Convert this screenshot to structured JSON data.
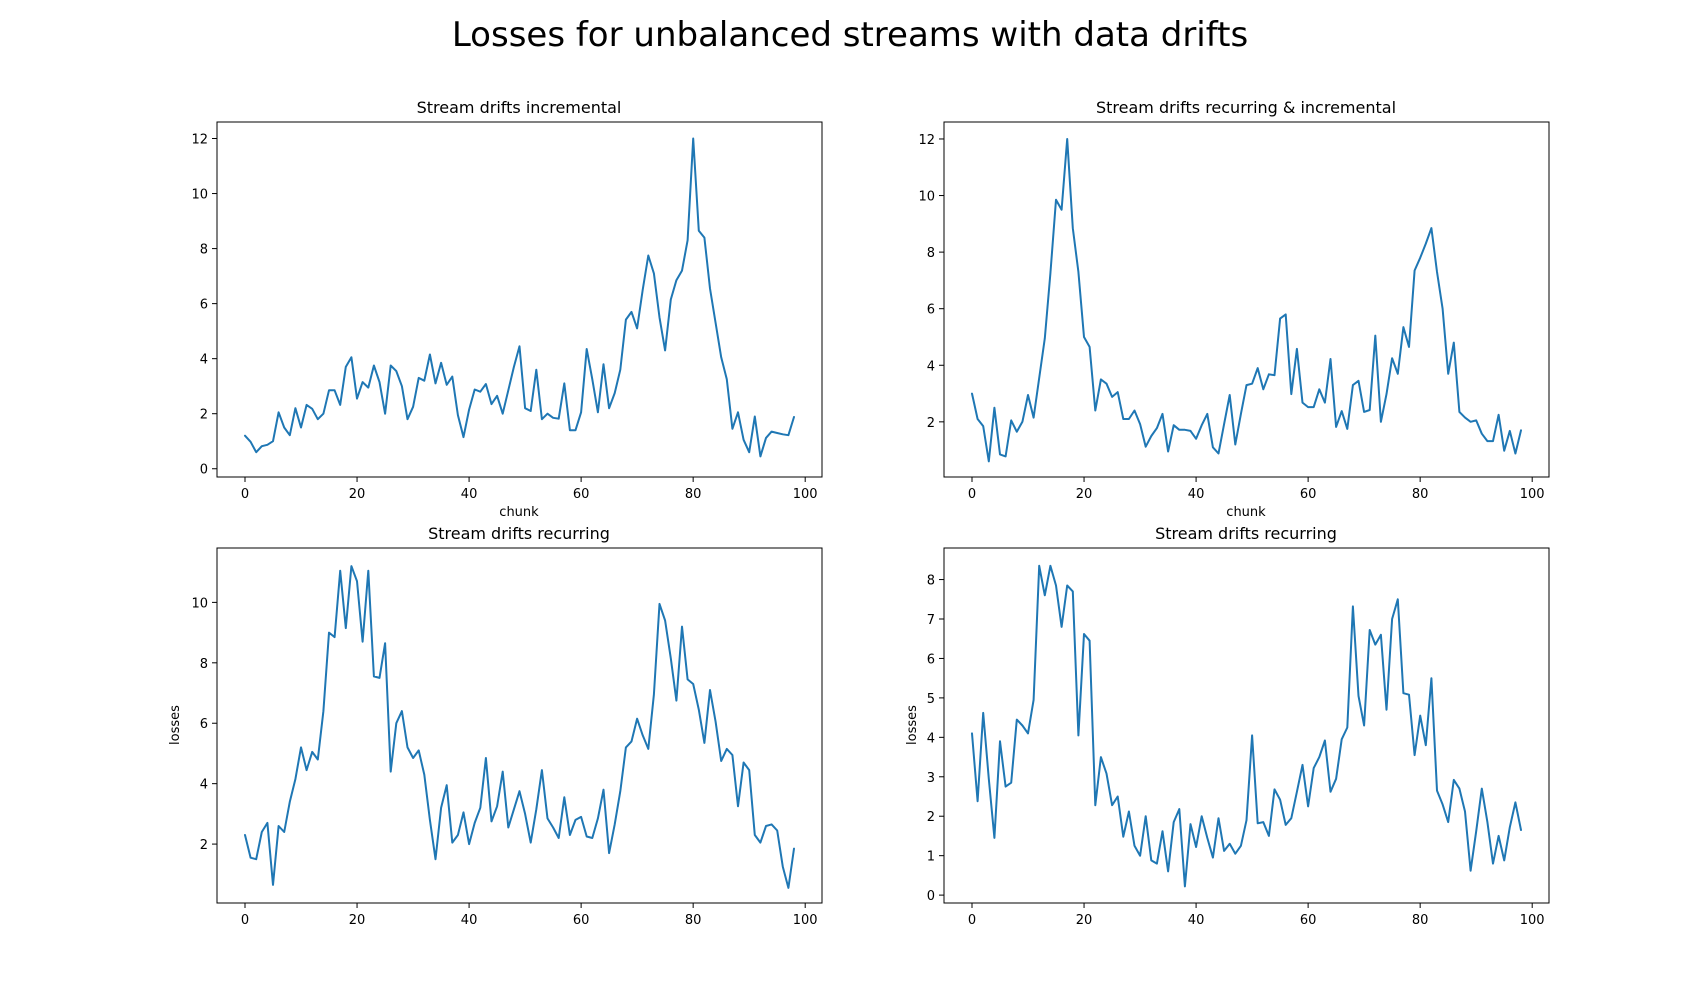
{
  "figure": {
    "title": "Losses for unbalanced streams with data drifts",
    "line_color": "#1f77b4"
  },
  "chart_data": [
    {
      "type": "line",
      "title": "Stream drifts incremental",
      "xlabel": "chunk",
      "ylabel": "",
      "xlim": [
        -5,
        103
      ],
      "ylim": [
        -0.3,
        12.6
      ],
      "xticks": [
        0,
        20,
        40,
        60,
        80,
        100
      ],
      "yticks": [
        0,
        2,
        4,
        6,
        8,
        10,
        12
      ],
      "series": [
        {
          "x": [
            0,
            1,
            2,
            3,
            4,
            5,
            6,
            7,
            8,
            9,
            10,
            11,
            12,
            13,
            14,
            15,
            16,
            17,
            18,
            19,
            20,
            21,
            22,
            23,
            24,
            25,
            26,
            27,
            28,
            29,
            30,
            31,
            32,
            33,
            34,
            35,
            36,
            37,
            38,
            39,
            40,
            41,
            42,
            43,
            44,
            45,
            46,
            47,
            48,
            49,
            50,
            51,
            52,
            53,
            54,
            55,
            56,
            57,
            58,
            59,
            60,
            61,
            62,
            63,
            64,
            65,
            66,
            67,
            68,
            69,
            70,
            71,
            72,
            73,
            74,
            75,
            76,
            77,
            78,
            79,
            80,
            81,
            82,
            83,
            84,
            85,
            86,
            87,
            88,
            89,
            90,
            91,
            92,
            93,
            94,
            95,
            96,
            97,
            98
          ],
          "values": [
            1.2,
            0.98,
            0.6,
            0.82,
            0.87,
            1.0,
            2.05,
            1.5,
            1.22,
            2.2,
            1.5,
            2.32,
            2.18,
            1.8,
            2.0,
            2.85,
            2.85,
            2.32,
            3.7,
            4.05,
            2.55,
            3.15,
            2.95,
            3.75,
            3.15,
            2.0,
            3.75,
            3.55,
            3.0,
            1.8,
            2.25,
            3.3,
            3.2,
            4.15,
            3.1,
            3.85,
            3.05,
            3.35,
            1.95,
            1.15,
            2.15,
            2.88,
            2.8,
            3.08,
            2.35,
            2.65,
            2.0,
            2.85,
            3.7,
            4.45,
            2.2,
            2.1,
            3.6,
            1.8,
            2.0,
            1.85,
            1.82,
            3.1,
            1.4,
            1.4,
            2.05,
            4.35,
            3.25,
            2.05,
            3.8,
            2.2,
            2.75,
            3.6,
            5.42,
            5.7,
            5.1,
            6.5,
            7.75,
            7.1,
            5.5,
            4.3,
            6.15,
            6.85,
            7.2,
            8.3,
            12.0,
            8.65,
            8.4,
            6.55,
            5.3,
            4.05,
            3.25,
            1.45,
            2.05,
            1.05,
            0.6,
            1.9,
            0.45,
            1.12,
            1.35,
            1.3,
            1.25,
            1.22,
            1.88
          ]
        }
      ]
    },
    {
      "type": "line",
      "title": "Stream drifts recurring & incremental",
      "xlabel": "chunk",
      "ylabel": "",
      "xlim": [
        -5,
        103
      ],
      "ylim": [
        0.05,
        12.6
      ],
      "xticks": [
        0,
        20,
        40,
        60,
        80,
        100
      ],
      "yticks": [
        2,
        4,
        6,
        8,
        10,
        12
      ],
      "series": [
        {
          "x": [
            0,
            1,
            2,
            3,
            4,
            5,
            6,
            7,
            8,
            9,
            10,
            11,
            12,
            13,
            14,
            15,
            16,
            17,
            18,
            19,
            20,
            21,
            22,
            23,
            24,
            25,
            26,
            27,
            28,
            29,
            30,
            31,
            32,
            33,
            34,
            35,
            36,
            37,
            38,
            39,
            40,
            41,
            42,
            43,
            44,
            45,
            46,
            47,
            48,
            49,
            50,
            51,
            52,
            53,
            54,
            55,
            56,
            57,
            58,
            59,
            60,
            61,
            62,
            63,
            64,
            65,
            66,
            67,
            68,
            69,
            70,
            71,
            72,
            73,
            74,
            75,
            76,
            77,
            78,
            79,
            80,
            81,
            82,
            83,
            84,
            85,
            86,
            87,
            88,
            89,
            90,
            91,
            92,
            93,
            94,
            95,
            96,
            97,
            98
          ],
          "values": [
            3.0,
            2.1,
            1.85,
            0.6,
            2.5,
            0.85,
            0.78,
            2.05,
            1.65,
            2.0,
            2.95,
            2.15,
            3.55,
            4.95,
            7.25,
            9.85,
            9.5,
            12.0,
            8.85,
            7.3,
            5.0,
            4.65,
            2.4,
            3.5,
            3.35,
            2.88,
            3.05,
            2.1,
            2.1,
            2.4,
            1.92,
            1.12,
            1.5,
            1.78,
            2.28,
            0.95,
            1.88,
            1.72,
            1.72,
            1.68,
            1.4,
            1.88,
            2.28,
            1.1,
            0.88,
            1.92,
            2.95,
            1.2,
            2.28,
            3.3,
            3.35,
            3.9,
            3.15,
            3.68,
            3.65,
            5.65,
            5.8,
            2.98,
            4.58,
            2.68,
            2.52,
            2.52,
            3.15,
            2.68,
            4.22,
            1.82,
            2.38,
            1.75,
            3.3,
            3.45,
            2.35,
            2.42,
            5.05,
            2.0,
            2.98,
            4.25,
            3.7,
            5.35,
            4.65,
            7.35,
            7.8,
            8.3,
            8.85,
            7.3,
            6.0,
            3.7,
            4.8,
            2.35,
            2.15,
            2.0,
            2.05,
            1.58,
            1.32,
            1.32,
            2.25,
            0.98,
            1.68,
            0.88,
            1.7
          ]
        }
      ]
    },
    {
      "type": "line",
      "title": "Stream drifts recurring",
      "xlabel": "",
      "ylabel": "losses",
      "xlim": [
        -5,
        103
      ],
      "ylim": [
        0.05,
        11.8
      ],
      "xticks": [
        0,
        20,
        40,
        60,
        80,
        100
      ],
      "yticks": [
        2,
        4,
        6,
        8,
        10
      ],
      "series": [
        {
          "x": [
            0,
            1,
            2,
            3,
            4,
            5,
            6,
            7,
            8,
            9,
            10,
            11,
            12,
            13,
            14,
            15,
            16,
            17,
            18,
            19,
            20,
            21,
            22,
            23,
            24,
            25,
            26,
            27,
            28,
            29,
            30,
            31,
            32,
            33,
            34,
            35,
            36,
            37,
            38,
            39,
            40,
            41,
            42,
            43,
            44,
            45,
            46,
            47,
            48,
            49,
            50,
            51,
            52,
            53,
            54,
            55,
            56,
            57,
            58,
            59,
            60,
            61,
            62,
            63,
            64,
            65,
            66,
            67,
            68,
            69,
            70,
            71,
            72,
            73,
            74,
            75,
            76,
            77,
            78,
            79,
            80,
            81,
            82,
            83,
            84,
            85,
            86,
            87,
            88,
            89,
            90,
            91,
            92,
            93,
            94,
            95,
            96,
            97,
            98
          ],
          "values": [
            2.3,
            1.55,
            1.5,
            2.4,
            2.7,
            0.65,
            2.6,
            2.4,
            3.4,
            4.15,
            5.2,
            4.45,
            5.05,
            4.8,
            6.4,
            9.0,
            8.85,
            11.05,
            9.15,
            11.2,
            10.7,
            8.7,
            11.05,
            7.55,
            7.5,
            8.65,
            4.4,
            6.0,
            6.4,
            5.2,
            4.85,
            5.1,
            4.3,
            2.8,
            1.5,
            3.2,
            3.95,
            2.05,
            2.3,
            3.05,
            2.0,
            2.7,
            3.2,
            4.85,
            2.75,
            3.25,
            4.4,
            2.55,
            3.15,
            3.75,
            3.0,
            2.05,
            3.15,
            4.45,
            2.85,
            2.55,
            2.2,
            3.55,
            2.3,
            2.8,
            2.9,
            2.25,
            2.2,
            2.85,
            3.8,
            1.7,
            2.65,
            3.75,
            5.2,
            5.4,
            6.15,
            5.6,
            5.15,
            6.95,
            9.95,
            9.4,
            8.15,
            6.75,
            9.2,
            7.45,
            7.3,
            6.45,
            5.35,
            7.1,
            6.05,
            4.75,
            5.15,
            4.95,
            3.25,
            4.7,
            4.45,
            2.3,
            2.05,
            2.6,
            2.65,
            2.45,
            1.25,
            0.55,
            1.85
          ]
        }
      ]
    },
    {
      "type": "line",
      "title": "Stream drifts recurring",
      "xlabel": "",
      "ylabel": "losses",
      "xlim": [
        -5,
        103
      ],
      "ylim": [
        -0.2,
        8.8
      ],
      "xticks": [
        0,
        20,
        40,
        60,
        80,
        100
      ],
      "yticks": [
        0,
        1,
        2,
        3,
        4,
        5,
        6,
        7,
        8
      ],
      "series": [
        {
          "x": [
            0,
            1,
            2,
            3,
            4,
            5,
            6,
            7,
            8,
            9,
            10,
            11,
            12,
            13,
            14,
            15,
            16,
            17,
            18,
            19,
            20,
            21,
            22,
            23,
            24,
            25,
            26,
            27,
            28,
            29,
            30,
            31,
            32,
            33,
            34,
            35,
            36,
            37,
            38,
            39,
            40,
            41,
            42,
            43,
            44,
            45,
            46,
            47,
            48,
            49,
            50,
            51,
            52,
            53,
            54,
            55,
            56,
            57,
            58,
            59,
            60,
            61,
            62,
            63,
            64,
            65,
            66,
            67,
            68,
            69,
            70,
            71,
            72,
            73,
            74,
            75,
            76,
            77,
            78,
            79,
            80,
            81,
            82,
            83,
            84,
            85,
            86,
            87,
            88,
            89,
            90,
            91,
            92,
            93,
            94,
            95,
            96,
            97,
            98
          ],
          "values": [
            4.1,
            2.38,
            4.62,
            2.95,
            1.45,
            3.9,
            2.75,
            2.85,
            4.45,
            4.3,
            4.1,
            4.95,
            8.35,
            7.6,
            8.35,
            7.85,
            6.8,
            7.85,
            7.7,
            4.05,
            6.62,
            6.45,
            2.28,
            3.5,
            3.08,
            2.28,
            2.5,
            1.48,
            2.12,
            1.25,
            1.0,
            2.0,
            0.88,
            0.8,
            1.62,
            0.6,
            1.85,
            2.18,
            0.22,
            1.8,
            1.22,
            2.0,
            1.45,
            0.95,
            1.95,
            1.12,
            1.3,
            1.05,
            1.25,
            1.9,
            4.05,
            1.82,
            1.85,
            1.5,
            2.68,
            2.42,
            1.78,
            1.95,
            2.62,
            3.3,
            2.25,
            3.22,
            3.5,
            3.92,
            2.62,
            2.95,
            3.95,
            4.25,
            7.32,
            5.05,
            4.3,
            6.72,
            6.35,
            6.6,
            4.7,
            7.0,
            7.5,
            5.12,
            5.08,
            3.55,
            4.55,
            3.8,
            5.5,
            2.65,
            2.3,
            1.85,
            2.92,
            2.7,
            2.12,
            0.62,
            1.62,
            2.7,
            1.85,
            0.8,
            1.5,
            0.88,
            1.72,
            2.35,
            1.65
          ]
        }
      ]
    }
  ]
}
